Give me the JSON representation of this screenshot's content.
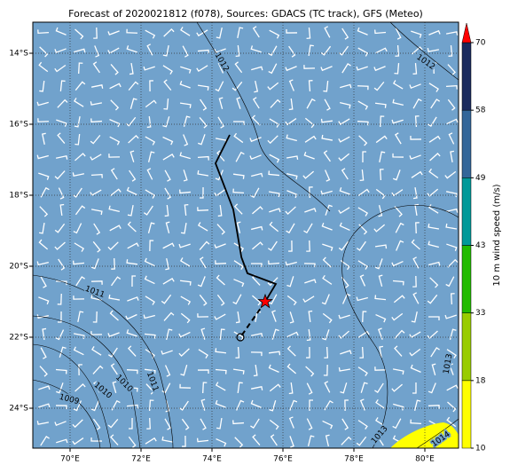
{
  "chart_data": {
    "type": "map",
    "title": "Forecast of 2020021812 (f078), Sources: GDACS (TC track), GFS (Meteo)",
    "xlim": [
      68.95,
      80.95
    ],
    "ylim": [
      -25.125,
      -13.125
    ],
    "xticks": [
      {
        "value": 70,
        "label": "70°E"
      },
      {
        "value": 72,
        "label": "72°E"
      },
      {
        "value": 74,
        "label": "74°E"
      },
      {
        "value": 76,
        "label": "76°E"
      },
      {
        "value": 78,
        "label": "78°E"
      },
      {
        "value": 80,
        "label": "80°E"
      }
    ],
    "yticks": [
      {
        "value": -14,
        "label": "14°S"
      },
      {
        "value": -16,
        "label": "16°S"
      },
      {
        "value": -18,
        "label": "18°S"
      },
      {
        "value": -20,
        "label": "20°S"
      },
      {
        "value": -22,
        "label": "22°S"
      },
      {
        "value": -24,
        "label": "24°S"
      }
    ],
    "grid": true,
    "track": {
      "lon": [
        74.5,
        74.1,
        74.6,
        74.83,
        75.0,
        75.8,
        75.5
      ],
      "lat": [
        -16.3,
        -17.1,
        -18.4,
        -19.75,
        -20.2,
        -20.5,
        -21.0
      ],
      "color": "#000000"
    },
    "forecast_track": {
      "lon": [
        75.5,
        74.8
      ],
      "lat": [
        -21.0,
        -22.0
      ],
      "color": "#000000"
    },
    "contour_labels": [
      1012,
      1012,
      1011,
      1011,
      1010,
      1010,
      1009,
      1013,
      1013,
      1014
    ],
    "colorbar": {
      "label": "10 m wind speed (m/s)",
      "ticks": [
        10,
        18,
        33,
        43,
        49,
        58,
        70
      ],
      "colors": [
        "#ffff00",
        "#99cc00",
        "#22bb00",
        "#009999",
        "#336699",
        "#1a2a5e"
      ],
      "extend_color": "#ff0000"
    }
  }
}
